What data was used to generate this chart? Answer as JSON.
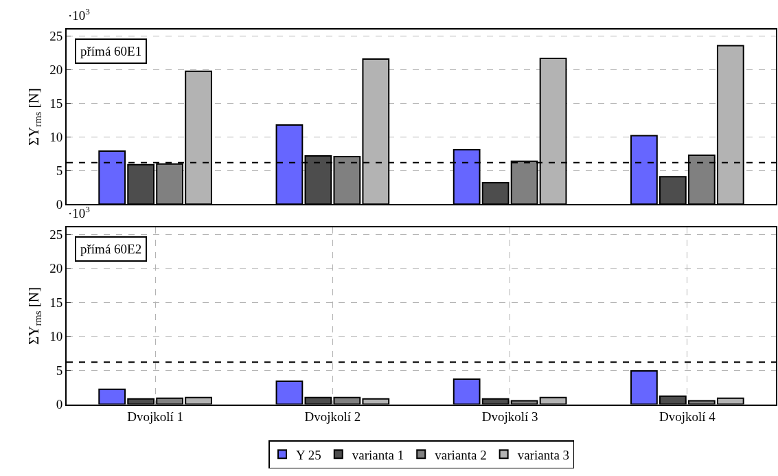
{
  "chart_data": [
    {
      "type": "bar",
      "title": "přímá 60E1",
      "ylabel": "ΣY$_{rms}$ [N]",
      "annotations": [
        "·10$^{3}$"
      ],
      "categories": [
        null,
        null,
        null,
        null
      ],
      "tick_labels": "y",
      "ylim": [
        0,
        26
      ],
      "yticks": [
        0,
        5,
        10,
        15,
        20,
        25
      ],
      "grid": true,
      "series": [
        {
          "color": "#6666ff",
          "values": [
            7.9,
            11.8,
            8.1,
            10.2
          ]
        },
        {
          "color": "#4d4d4d",
          "values": [
            5.9,
            7.2,
            3.2,
            4.1
          ]
        },
        {
          "color": "#808080",
          "values": [
            6.0,
            7.1,
            6.4,
            7.3
          ]
        },
        {
          "color": "#b3b3b3",
          "values": [
            19.8,
            21.6,
            21.7,
            23.6
          ]
        }
      ],
      "ref_lines": [
        {
          "axis": "y",
          "value": 6.2,
          "color": "#000000",
          "line_style": "dashed"
        }
      ]
    },
    {
      "type": "bar",
      "title": "přímá 60E2",
      "ylabel": "ΣY$_{rms}$ [N]",
      "annotations": [
        "·10$^{3}$"
      ],
      "categories": [
        "Dvojkolí 1",
        "Dvojkolí 2",
        "Dvojkolí 3",
        "Dvojkolí 4"
      ],
      "ylim": [
        0,
        26
      ],
      "yticks": [
        0,
        5,
        10,
        15,
        20,
        25
      ],
      "grid": true,
      "legend": "bottom",
      "series": [
        {
          "name": "Y 25",
          "color": "#6666ff",
          "values": [
            2.2,
            3.4,
            3.7,
            4.9
          ]
        },
        {
          "name": "varianta 1",
          "color": "#4d4d4d",
          "values": [
            0.8,
            1.0,
            0.8,
            1.2
          ]
        },
        {
          "name": "varianta 2",
          "color": "#808080",
          "values": [
            0.9,
            1.0,
            0.5,
            0.5
          ]
        },
        {
          "name": "varianta 3",
          "color": "#b3b3b3",
          "values": [
            1.0,
            0.8,
            1.0,
            0.9
          ]
        }
      ],
      "ref_lines": [
        {
          "axis": "y",
          "value": 6.2,
          "color": "#000000",
          "line_style": "dashed"
        }
      ]
    }
  ]
}
